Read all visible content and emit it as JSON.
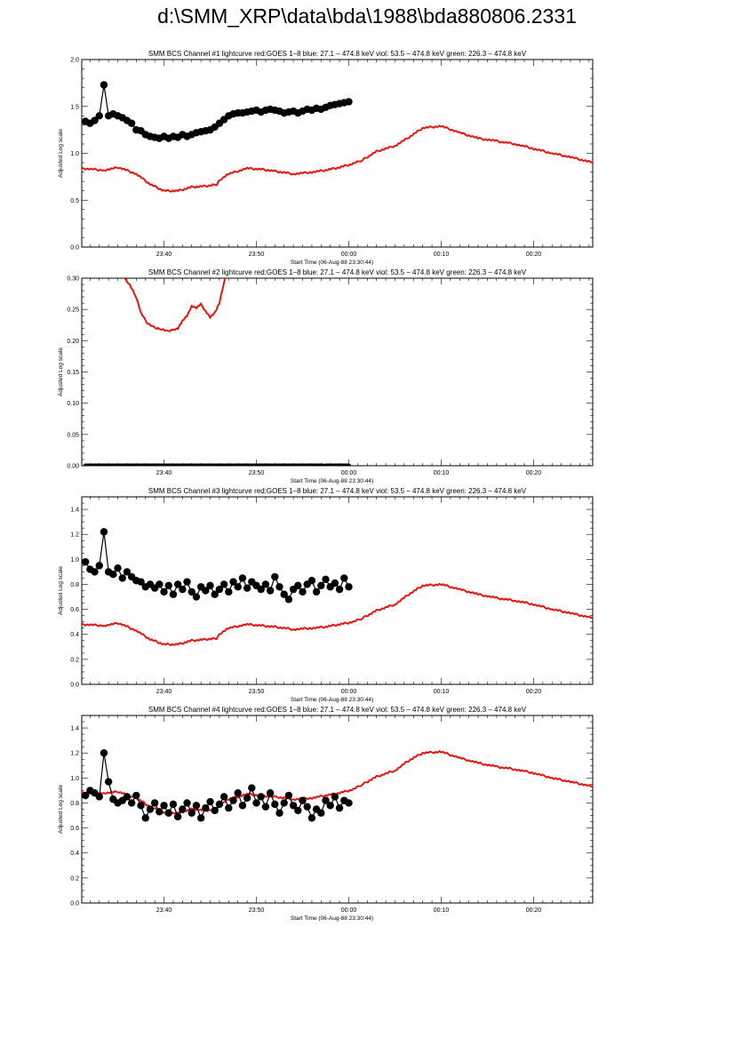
{
  "page": {
    "title": "d:\\SMM_XRP\\data\\bda\\1988\\bda880806.2331"
  },
  "colors": {
    "goes": "#e8150e",
    "bcs": "#000000",
    "axis": "#000000"
  },
  "chart_data": [
    {
      "type": "line",
      "title": "SMM BCS Channel #1 lightcurve  red:GOES 1–8  blue: 27.1 – 474.8 keV  viol: 53.5 – 474.8 keV  green: 226.3 – 474.8 keV",
      "xlabel": "Start Time (06-Aug-88 23:30:44)",
      "ylabel": "Adjusted Log scale",
      "xlim": [
        -8.9,
        46.4
      ],
      "ylim": [
        0,
        2.0
      ],
      "x_tick_values": [
        0,
        10,
        20,
        30,
        40
      ],
      "x_tick_labels": [
        "23:40",
        "23:50",
        "00:00",
        "00:10",
        "00:20"
      ],
      "y_tick_values": [
        0,
        0.5,
        1.0,
        1.5,
        2.0
      ],
      "y_tick_labels": [
        "0.0",
        "0.5",
        "1.0",
        "1.5",
        "2.0"
      ],
      "y_minor_step": 0.1,
      "series": [
        {
          "name": "GOES 1–8",
          "style": "goes",
          "x": [
            -8.9,
            -6.5,
            -4.9,
            -3,
            -1.5,
            0,
            1.5,
            3,
            4.5,
            5.7,
            6,
            7,
            9,
            10.5,
            12,
            14,
            16,
            17.5,
            19,
            20.5,
            21.5,
            23,
            25,
            26.5,
            28,
            30,
            32,
            34,
            36,
            38,
            40,
            42,
            44,
            46.4
          ],
          "y": [
            0.84,
            0.82,
            0.85,
            0.78,
            0.67,
            0.6,
            0.6,
            0.64,
            0.65,
            0.67,
            0.71,
            0.78,
            0.84,
            0.83,
            0.81,
            0.78,
            0.8,
            0.82,
            0.85,
            0.89,
            0.93,
            1.02,
            1.08,
            1.17,
            1.27,
            1.29,
            1.22,
            1.16,
            1.13,
            1.1,
            1.05,
            1.0,
            0.96,
            0.9
          ]
        },
        {
          "name": "BCS",
          "style": "bcs",
          "x": [
            -8.5,
            -8,
            -7.5,
            -7,
            -6.5,
            -6,
            -5.5,
            -5,
            -4.5,
            -4,
            -3.5,
            -3,
            -2.5,
            -2,
            -1.5,
            -1,
            -0.5,
            0,
            0.5,
            1,
            1.5,
            2,
            2.5,
            3,
            3.5,
            4,
            4.5,
            5,
            5.5,
            6,
            6.5,
            7,
            7.5,
            8,
            8.5,
            9,
            9.5,
            10,
            10.5,
            11,
            11.5,
            12,
            12.5,
            13,
            13.5,
            14,
            14.5,
            15,
            15.5,
            16,
            16.5,
            17,
            17.5,
            18,
            18.5,
            19,
            19.5,
            20
          ],
          "y": [
            1.34,
            1.32,
            1.35,
            1.4,
            1.73,
            1.4,
            1.42,
            1.4,
            1.38,
            1.35,
            1.32,
            1.25,
            1.24,
            1.2,
            1.18,
            1.17,
            1.16,
            1.18,
            1.16,
            1.18,
            1.17,
            1.2,
            1.18,
            1.2,
            1.22,
            1.23,
            1.24,
            1.25,
            1.28,
            1.32,
            1.36,
            1.4,
            1.42,
            1.43,
            1.43,
            1.44,
            1.45,
            1.46,
            1.44,
            1.46,
            1.47,
            1.46,
            1.45,
            1.43,
            1.44,
            1.45,
            1.43,
            1.45,
            1.47,
            1.46,
            1.48,
            1.47,
            1.49,
            1.51,
            1.52,
            1.53,
            1.54,
            1.55
          ]
        }
      ]
    },
    {
      "type": "line",
      "title": "SMM BCS Channel #2 lightcurve  red:GOES 1–8  blue: 27.1 – 474.8 keV  viol: 53.5 – 474.8 keV  green: 226.3 – 474.8 keV",
      "xlabel": "Start Time (06-Aug-88 23:30:44)",
      "ylabel": "Adjusted Log scale",
      "xlim": [
        -8.9,
        46.4
      ],
      "ylim": [
        0,
        0.3
      ],
      "x_tick_values": [
        0,
        10,
        20,
        30,
        40
      ],
      "x_tick_labels": [
        "23:40",
        "23:50",
        "00:00",
        "00:10",
        "00:20"
      ],
      "y_tick_values": [
        0,
        0.05,
        0.1,
        0.15,
        0.2,
        0.25,
        0.3
      ],
      "y_tick_labels": [
        "0.00",
        "0.05",
        "0.10",
        "0.15",
        "0.20",
        "0.25",
        "0.30"
      ],
      "y_minor_step": 0.01,
      "series": [
        {
          "name": "GOES 1–8",
          "style": "goes",
          "x": [
            -4.3,
            -3.7,
            -3,
            -2.5,
            -1.8,
            -1,
            -0.3,
            0.3,
            1,
            1.5,
            2,
            2.5,
            3,
            3.5,
            4,
            4.5,
            5,
            5.5,
            6,
            6.6
          ],
          "y": [
            0.3,
            0.29,
            0.27,
            0.245,
            0.228,
            0.22,
            0.218,
            0.215,
            0.218,
            0.22,
            0.232,
            0.24,
            0.255,
            0.252,
            0.258,
            0.248,
            0.238,
            0.245,
            0.26,
            0.3
          ]
        },
        {
          "name": "BCS",
          "style": "bcs-flat",
          "x": [
            -8.5,
            17.2,
            17.5,
            20
          ],
          "y": [
            0,
            0,
            0,
            0
          ]
        }
      ]
    },
    {
      "type": "line",
      "title": "SMM BCS Channel #3 lightcurve  red:GOES 1–8  blue: 27.1 – 474.8 keV  viol: 53.5 – 474.8 keV  green: 226.3 – 474.8 keV",
      "xlabel": "Start Time (06-Aug-88 23:30:44)",
      "ylabel": "Adjusted Log scale",
      "xlim": [
        -8.9,
        46.4
      ],
      "ylim": [
        0,
        1.5
      ],
      "x_tick_values": [
        0,
        10,
        20,
        30,
        40
      ],
      "x_tick_labels": [
        "23:40",
        "23:50",
        "00:00",
        "00:10",
        "00:20"
      ],
      "y_tick_values": [
        0,
        0.2,
        0.4,
        0.6,
        0.8,
        1.0,
        1.2,
        1.4
      ],
      "y_tick_labels": [
        "0.0",
        "0.2",
        "0.4",
        "0.6",
        "0.8",
        "1.0",
        "1.2",
        "1.4"
      ],
      "y_minor_step": 0.05,
      "series": [
        {
          "name": "GOES 1–8",
          "style": "goes",
          "x": [
            -8.9,
            -6.5,
            -4.9,
            -3,
            -1.5,
            0,
            1.5,
            3,
            4.5,
            5.7,
            6,
            7,
            9,
            10.5,
            12,
            14,
            16,
            17.5,
            19,
            20.5,
            21.5,
            23,
            25,
            26.5,
            28,
            30,
            32,
            34,
            36,
            38,
            40,
            42,
            44,
            46.4
          ],
          "y": [
            0.48,
            0.47,
            0.49,
            0.43,
            0.36,
            0.32,
            0.32,
            0.35,
            0.36,
            0.37,
            0.4,
            0.45,
            0.48,
            0.47,
            0.46,
            0.44,
            0.45,
            0.46,
            0.48,
            0.5,
            0.53,
            0.59,
            0.64,
            0.72,
            0.79,
            0.8,
            0.76,
            0.72,
            0.69,
            0.67,
            0.64,
            0.6,
            0.57,
            0.53
          ]
        },
        {
          "name": "BCS",
          "style": "bcs",
          "x": [
            -8.5,
            -8,
            -7.5,
            -7,
            -6.5,
            -6,
            -5.5,
            -5,
            -4.5,
            -4,
            -3.5,
            -3,
            -2.5,
            -2,
            -1.5,
            -1,
            -0.5,
            0,
            0.5,
            1,
            1.5,
            2,
            2.5,
            3,
            3.5,
            4,
            4.5,
            5,
            5.5,
            6,
            6.5,
            7,
            7.5,
            8,
            8.5,
            9,
            9.5,
            10,
            10.5,
            11,
            11.5,
            12,
            12.5,
            13,
            13.5,
            14,
            14.5,
            15,
            15.5,
            16,
            16.5,
            17,
            17.5,
            18,
            18.5,
            19,
            19.5,
            20
          ],
          "y": [
            0.98,
            0.92,
            0.9,
            0.95,
            1.22,
            0.9,
            0.88,
            0.93,
            0.85,
            0.9,
            0.86,
            0.83,
            0.82,
            0.78,
            0.8,
            0.77,
            0.8,
            0.74,
            0.79,
            0.72,
            0.8,
            0.76,
            0.82,
            0.74,
            0.7,
            0.78,
            0.75,
            0.79,
            0.72,
            0.76,
            0.8,
            0.74,
            0.82,
            0.78,
            0.85,
            0.77,
            0.82,
            0.79,
            0.76,
            0.8,
            0.75,
            0.86,
            0.78,
            0.72,
            0.68,
            0.76,
            0.79,
            0.74,
            0.8,
            0.83,
            0.74,
            0.79,
            0.84,
            0.78,
            0.81,
            0.76,
            0.85,
            0.78
          ]
        }
      ]
    },
    {
      "type": "line",
      "title": "SMM BCS Channel #4 lightcurve  red:GOES 1–8  blue: 27.1 – 474.8 keV  viol: 53.5 – 474.8 keV  green: 226.3 – 474.8 keV",
      "xlabel": "Start Time (06-Aug-88 23:30:44)",
      "ylabel": "Adjusted Log scale",
      "xlim": [
        -8.9,
        46.4
      ],
      "ylim": [
        0,
        1.5
      ],
      "x_tick_values": [
        0,
        10,
        20,
        30,
        40
      ],
      "x_tick_labels": [
        "23:40",
        "23:50",
        "00:00",
        "00:10",
        "00:20"
      ],
      "y_tick_values": [
        0,
        0.2,
        0.4,
        0.6,
        0.8,
        1.0,
        1.2,
        1.4
      ],
      "y_tick_labels": [
        "0.0",
        "0.2",
        "0.4",
        "0.6",
        "0.8",
        "1.0",
        "1.2",
        "1.4"
      ],
      "y_minor_step": 0.05,
      "series": [
        {
          "name": "GOES 1–8",
          "style": "goes",
          "x": [
            -8.9,
            -6.5,
            -4.9,
            -3,
            -1.5,
            0,
            1.5,
            3,
            4.5,
            5.7,
            6,
            7,
            9,
            10.5,
            12,
            14,
            16,
            17.5,
            19,
            20.5,
            21.5,
            23,
            25,
            26.5,
            28,
            30,
            32,
            34,
            36,
            38,
            40,
            42,
            44,
            46.4
          ],
          "y": [
            0.88,
            0.88,
            0.89,
            0.84,
            0.77,
            0.72,
            0.72,
            0.75,
            0.74,
            0.75,
            0.78,
            0.83,
            0.87,
            0.86,
            0.85,
            0.83,
            0.84,
            0.86,
            0.88,
            0.91,
            0.95,
            1.01,
            1.06,
            1.14,
            1.2,
            1.21,
            1.16,
            1.12,
            1.09,
            1.07,
            1.04,
            1.0,
            0.97,
            0.93
          ]
        },
        {
          "name": "BCS",
          "style": "bcs",
          "x": [
            -8.5,
            -8,
            -7.5,
            -7,
            -6.5,
            -6,
            -5.5,
            -5,
            -4.5,
            -4,
            -3.5,
            -3,
            -2.5,
            -2,
            -1.5,
            -1,
            -0.5,
            0,
            0.5,
            1,
            1.5,
            2,
            2.5,
            3,
            3.5,
            4,
            4.5,
            5,
            5.5,
            6,
            6.5,
            7,
            7.5,
            8,
            8.5,
            9,
            9.5,
            10,
            10.5,
            11,
            11.5,
            12,
            12.5,
            13,
            13.5,
            14,
            14.5,
            15,
            15.5,
            16,
            16.5,
            17,
            17.5,
            18,
            18.5,
            19,
            19.5,
            20
          ],
          "y": [
            0.86,
            0.9,
            0.88,
            0.85,
            1.2,
            0.97,
            0.83,
            0.8,
            0.82,
            0.85,
            0.8,
            0.86,
            0.78,
            0.68,
            0.75,
            0.8,
            0.73,
            0.78,
            0.72,
            0.79,
            0.69,
            0.75,
            0.8,
            0.72,
            0.78,
            0.68,
            0.76,
            0.81,
            0.74,
            0.79,
            0.85,
            0.76,
            0.82,
            0.88,
            0.78,
            0.84,
            0.92,
            0.8,
            0.85,
            0.77,
            0.88,
            0.79,
            0.72,
            0.8,
            0.86,
            0.78,
            0.74,
            0.82,
            0.77,
            0.68,
            0.75,
            0.72,
            0.82,
            0.78,
            0.85,
            0.76,
            0.82,
            0.8
          ]
        }
      ]
    }
  ]
}
